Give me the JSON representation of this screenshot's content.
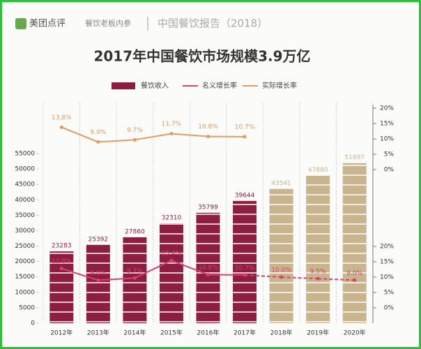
{
  "header": {
    "brand": "美团点评",
    "partner": "餐饮老板内参",
    "report": "中国餐饮报告（2018）"
  },
  "chart_data": {
    "type": "bar",
    "title": "2017年中国餐饮市场规模3.9万亿",
    "categories": [
      "2012年",
      "2013年",
      "2014年",
      "2015年",
      "2016年",
      "2017年",
      "2018年",
      "2019年",
      "2020年"
    ],
    "bar_series": {
      "name": "餐饮收入",
      "color": "#8c1f40",
      "colors": [
        "#8c1f40",
        "#8c1f40",
        "#8c1f40",
        "#8c1f40",
        "#8c1f40",
        "#8c1f40",
        "#c8b58e",
        "#c8b58e",
        "#c8b58e"
      ],
      "values": [
        23283,
        25392,
        27860,
        32310,
        35799,
        39644,
        43541,
        47880,
        51897
      ]
    },
    "series": [
      {
        "name": "名义增长率",
        "color": "#d9406e",
        "axis": "y3",
        "values": [
          12.8,
          9.0,
          9.7,
          15.4,
          10.8,
          10.7,
          10.0,
          9.5,
          9.0
        ],
        "value_labels": [
          "12.8%",
          "9.0%",
          "9.7%",
          "15.4%",
          "10.8%",
          "10.7%",
          "10.0%",
          "9.5%",
          "9.0%"
        ]
      },
      {
        "name": "实际增长率",
        "color": "#e49a5c",
        "axis": "y2",
        "values": [
          13.8,
          9.0,
          9.7,
          11.7,
          10.8,
          10.7,
          null,
          null,
          null
        ],
        "value_labels": [
          "13.8%",
          "9.0%",
          "9.7%",
          "11.7%",
          "10.8%",
          "10.7%",
          null,
          null,
          null
        ]
      }
    ],
    "ylim": [
      0,
      55000
    ],
    "yticks": [
      0,
      5000,
      10000,
      15000,
      20000,
      25000,
      30000,
      35000,
      40000,
      45000,
      50000,
      55000
    ],
    "y2lim": [
      0,
      20
    ],
    "y2ticks": [
      {
        "value": 0,
        "label": "0%"
      },
      {
        "value": 5,
        "label": "5%"
      },
      {
        "value": 10,
        "label": "10%"
      },
      {
        "value": 15,
        "label": "15%"
      },
      {
        "value": 20,
        "label": "20%"
      }
    ],
    "y3lim": [
      0,
      20
    ],
    "y3ticks": [
      {
        "value": 0,
        "label": "0%"
      },
      {
        "value": 5,
        "label": "5%"
      },
      {
        "value": 10,
        "label": "10%"
      },
      {
        "value": 15,
        "label": "15%"
      },
      {
        "value": 20,
        "label": "20%"
      }
    ]
  }
}
